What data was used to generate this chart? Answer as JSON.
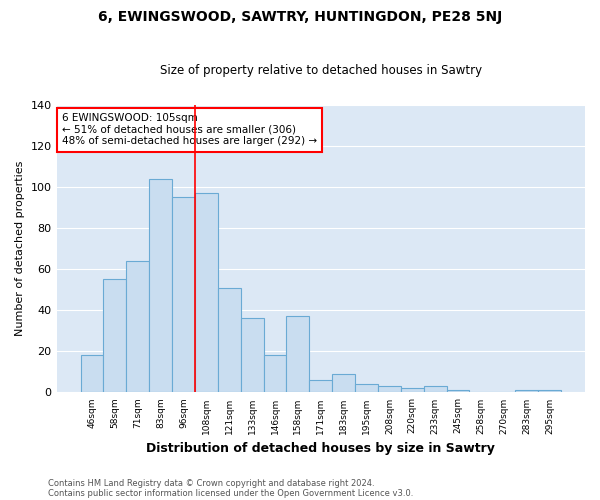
{
  "title": "6, EWINGSWOOD, SAWTRY, HUNTINGDON, PE28 5NJ",
  "subtitle": "Size of property relative to detached houses in Sawtry",
  "xlabel": "Distribution of detached houses by size in Sawtry",
  "ylabel": "Number of detached properties",
  "bar_color": "#c9ddf0",
  "bar_edge_color": "#6aaad4",
  "bg_color": "#dce8f5",
  "plot_bg_color": "#dce8f5",
  "categories": [
    "46sqm",
    "58sqm",
    "71sqm",
    "83sqm",
    "96sqm",
    "108sqm",
    "121sqm",
    "133sqm",
    "146sqm",
    "158sqm",
    "171sqm",
    "183sqm",
    "195sqm",
    "208sqm",
    "220sqm",
    "233sqm",
    "245sqm",
    "258sqm",
    "270sqm",
    "283sqm",
    "295sqm"
  ],
  "values": [
    18,
    55,
    64,
    104,
    95,
    97,
    51,
    36,
    18,
    37,
    6,
    9,
    4,
    3,
    2,
    3,
    1,
    0,
    0,
    1,
    1
  ],
  "ylim": [
    0,
    140
  ],
  "yticks": [
    0,
    20,
    40,
    60,
    80,
    100,
    120,
    140
  ],
  "vline_bar_index": 4,
  "annotation_title": "6 EWINGSWOOD: 105sqm",
  "annotation_line1": "← 51% of detached houses are smaller (306)",
  "annotation_line2": "48% of semi-detached houses are larger (292) →",
  "footer1": "Contains HM Land Registry data © Crown copyright and database right 2024.",
  "footer2": "Contains public sector information licensed under the Open Government Licence v3.0."
}
